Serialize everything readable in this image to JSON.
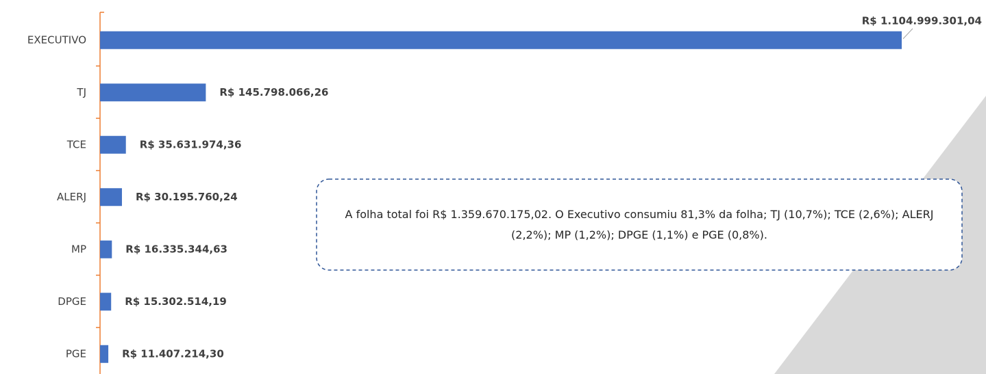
{
  "chart_data": {
    "type": "hbar",
    "categories": [
      "EXECUTIVO",
      "TJ",
      "TCE",
      "ALERJ",
      "MP",
      "DPGE",
      "PGE"
    ],
    "values": [
      1104999301.04,
      145798066.26,
      35631974.36,
      30195760.24,
      16335344.63,
      15302514.19,
      11407214.3
    ],
    "value_labels": [
      "R$ 1.104.999.301,04",
      "R$ 145.798.066,26",
      "R$ 35.631.974,36",
      "R$ 30.195.760,24",
      "R$ 16.335.344,63",
      "R$ 15.302.514,19",
      "R$ 11.407.214,30"
    ],
    "color": "#4472c4",
    "label_color": "#ed7d31",
    "axis_color": "#ed7d31",
    "annotation": "A folha total foi R$ 1.359.670.175,02. O Executivo consumiu 81,3% da folha; TJ (10,7%); TCE (2,6%); ALERJ (2,2%); MP (1,2%); DPGE (1,1%) e PGE (0,8%)."
  }
}
